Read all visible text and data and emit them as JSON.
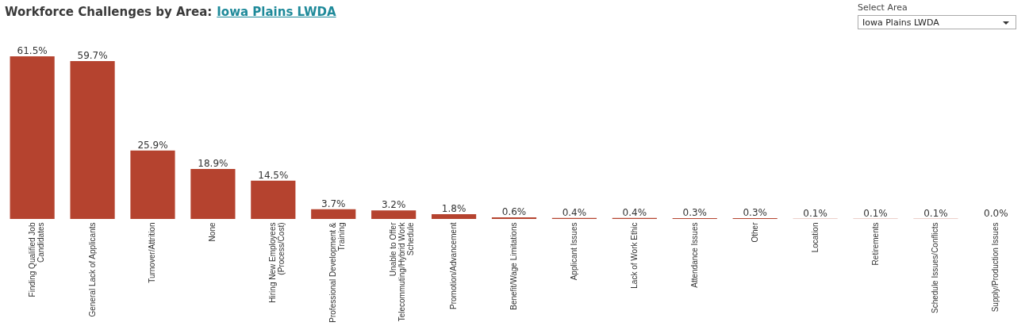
{
  "chart_data": {
    "type": "bar",
    "title": "Workforce Challenges by Area:",
    "subtitle": "Iowa Plains LWDA",
    "annotations": [
      "Select Area",
      "Iowa Plains LWDA"
    ],
    "categories": [
      "Finding Qualified Job Candidates",
      "General Lack of Applicants",
      "Turnover/Attrition",
      "None",
      "Hiring New Employees (Process/Cost)",
      "Professional Development & Training",
      "Unable to Offer Telecommuting/Hybrid Work Schedule",
      "Promotion/Advancement",
      "Benefit/Wage Limitations",
      "Applicant Issues",
      "Lack of Work Ethic",
      "Attendance Issues",
      "Other",
      "Location",
      "Retirements",
      "Schedule Issues/Conflicts",
      "Supply/Production Issues"
    ],
    "values": [
      61.5,
      59.7,
      25.9,
      18.9,
      14.5,
      3.7,
      3.2,
      1.8,
      0.6,
      0.4,
      0.4,
      0.3,
      0.3,
      0.1,
      0.1,
      0.1,
      0.0
    ],
    "value_labels": [
      "61.5%",
      "59.7%",
      "25.9%",
      "18.9%",
      "14.5%",
      "3.7%",
      "3.2%",
      "1.8%",
      "0.6%",
      "0.4%",
      "0.4%",
      "0.3%",
      "0.3%",
      "0.1%",
      "0.1%",
      "0.1%",
      "0.0%"
    ],
    "color": "#b5432f"
  }
}
